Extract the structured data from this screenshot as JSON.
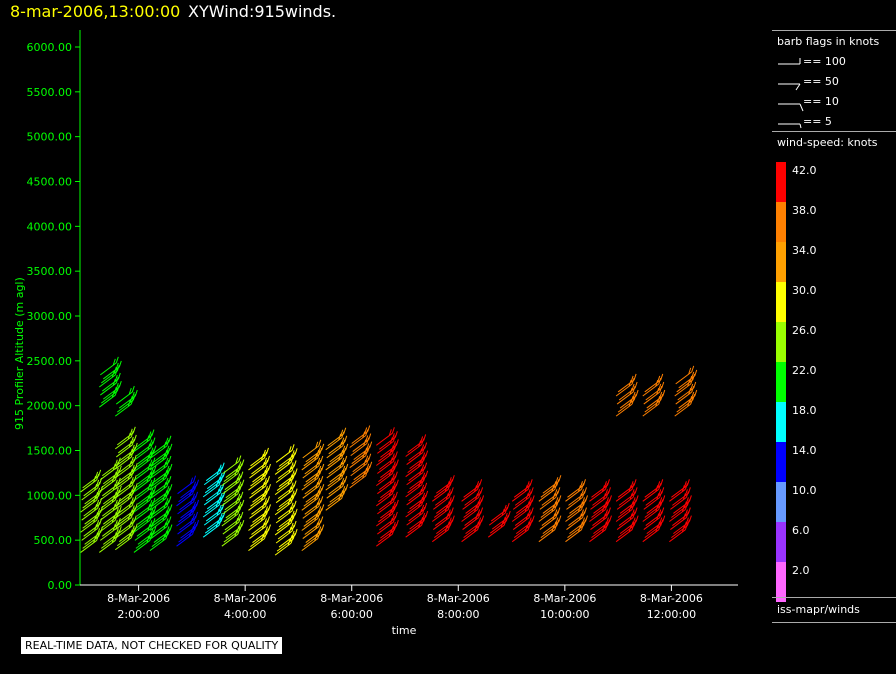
{
  "header": {
    "datetime": "8-mar-2006,13:00:00",
    "product": "XYWind:915winds."
  },
  "chart_data": {
    "type": "scatter",
    "ylabel": "915 Profiler Altitude (m agl)",
    "xlabel": "time",
    "ylim": [
      0,
      6200
    ],
    "y_ticks": [
      "0.00",
      "500.00",
      "1000.00",
      "1500.00",
      "2000.00",
      "2500.00",
      "3000.00",
      "3500.00",
      "4000.00",
      "4500.00",
      "5000.00",
      "5500.00",
      "6000.00"
    ],
    "x_ticks": [
      {
        "date": "8-Mar-2006",
        "time": "2:00:00",
        "hour": 2
      },
      {
        "date": "8-Mar-2006",
        "time": "4:00:00",
        "hour": 4
      },
      {
        "date": "8-Mar-2006",
        "time": "6:00:00",
        "hour": 6
      },
      {
        "date": "8-Mar-2006",
        "time": "8:00:00",
        "hour": 8
      },
      {
        "date": "8-Mar-2006",
        "time": "10:00:00",
        "hour": 10
      },
      {
        "date": "8-Mar-2006",
        "time": "12:00:00",
        "hour": 12
      }
    ],
    "xlim_hours": [
      0.9,
      13.25
    ],
    "profiles": [
      {
        "hour": 1.1,
        "speed": 24,
        "low": 430,
        "high": 1180
      },
      {
        "hour": 1.45,
        "speed": 25,
        "low": 430,
        "high": 1300
      },
      {
        "hour": 1.45,
        "speed": 22,
        "low": 2050,
        "high": 2420
      },
      {
        "hour": 1.75,
        "speed": 24,
        "low": 460,
        "high": 1650
      },
      {
        "hour": 1.75,
        "speed": 22,
        "low": 1950,
        "high": 2100
      },
      {
        "hour": 2.1,
        "speed": 20,
        "low": 430,
        "high": 1600
      },
      {
        "hour": 2.4,
        "speed": 22,
        "low": 450,
        "high": 1550
      },
      {
        "hour": 2.9,
        "speed": 15,
        "low": 500,
        "high": 1100
      },
      {
        "hour": 3.4,
        "speed": 18,
        "low": 600,
        "high": 1250
      },
      {
        "hour": 3.75,
        "speed": 27,
        "low": 500,
        "high": 1350
      },
      {
        "hour": 4.25,
        "speed": 30,
        "low": 450,
        "high": 1400
      },
      {
        "hour": 4.75,
        "speed": 31,
        "low": 400,
        "high": 1450
      },
      {
        "hour": 5.25,
        "speed": 33,
        "low": 450,
        "high": 1500
      },
      {
        "hour": 5.7,
        "speed": 35,
        "low": 900,
        "high": 1650
      },
      {
        "hour": 6.15,
        "speed": 36,
        "low": 1150,
        "high": 1650
      },
      {
        "hour": 6.65,
        "speed": 41,
        "low": 500,
        "high": 1650
      },
      {
        "hour": 7.2,
        "speed": 40,
        "low": 600,
        "high": 1550
      },
      {
        "hour": 7.7,
        "speed": 41,
        "low": 550,
        "high": 1100
      },
      {
        "hour": 8.25,
        "speed": 41,
        "low": 550,
        "high": 1050
      },
      {
        "hour": 8.75,
        "speed": 41,
        "low": 600,
        "high": 800
      },
      {
        "hour": 9.2,
        "speed": 40,
        "low": 550,
        "high": 1050
      },
      {
        "hour": 9.7,
        "speed": 39,
        "low": 550,
        "high": 1100
      },
      {
        "hour": 10.2,
        "speed": 38,
        "low": 550,
        "high": 1050
      },
      {
        "hour": 10.65,
        "speed": 41,
        "low": 550,
        "high": 1050
      },
      {
        "hour": 11.15,
        "speed": 41,
        "low": 550,
        "high": 1050
      },
      {
        "hour": 11.65,
        "speed": 40,
        "low": 550,
        "high": 1050
      },
      {
        "hour": 12.15,
        "speed": 41,
        "low": 550,
        "high": 1050
      },
      {
        "hour": 11.15,
        "speed": 38,
        "low": 1950,
        "high": 2250
      },
      {
        "hour": 11.65,
        "speed": 38,
        "low": 1950,
        "high": 2250
      },
      {
        "hour": 12.25,
        "speed": 37,
        "low": 1950,
        "high": 2350
      }
    ]
  },
  "legend": {
    "barb_title": "barb flags in knots",
    "barb_items": [
      "== 100",
      "== 50",
      "== 10",
      "== 5"
    ],
    "speed_title": "wind-speed: knots",
    "scale": [
      {
        "label": "42.0",
        "color": "#ff0000"
      },
      {
        "label": "38.0",
        "color": "#ff8000"
      },
      {
        "label": "34.0",
        "color": "#ffa000"
      },
      {
        "label": "30.0",
        "color": "#ffff00"
      },
      {
        "label": "26.0",
        "color": "#99ff00"
      },
      {
        "label": "22.0",
        "color": "#00ff00"
      },
      {
        "label": "18.0",
        "color": "#00ffff"
      },
      {
        "label": "14.0",
        "color": "#0000ff"
      },
      {
        "label": "10.0",
        "color": "#6699ff"
      },
      {
        "label": "6.0",
        "color": "#9933ff"
      },
      {
        "label": "2.0",
        "color": "#ff66ff"
      }
    ],
    "source": "iss-mapr/winds"
  },
  "footer": {
    "qc_note": "REAL-TIME DATA, NOT CHECKED FOR QUALITY"
  }
}
